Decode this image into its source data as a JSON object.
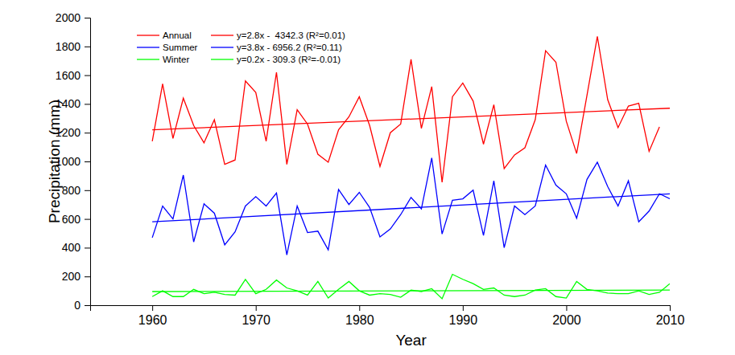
{
  "chart_data": {
    "type": "line",
    "x_label": "Year",
    "y_label": "Precipitation (mm)",
    "x": [
      1960,
      1961,
      1962,
      1963,
      1964,
      1965,
      1966,
      1967,
      1968,
      1969,
      1970,
      1971,
      1972,
      1973,
      1974,
      1975,
      1976,
      1977,
      1978,
      1979,
      1980,
      1981,
      1982,
      1983,
      1984,
      1985,
      1986,
      1987,
      1988,
      1989,
      1990,
      1991,
      1992,
      1993,
      1994,
      1995,
      1996,
      1997,
      1998,
      1999,
      2000,
      2001,
      2002,
      2003,
      2004,
      2005,
      2006,
      2007,
      2008,
      2009,
      2010
    ],
    "xlim": [
      1954,
      2010
    ],
    "xticks": [
      1960,
      1970,
      1980,
      1990,
      2000,
      2010
    ],
    "ylim": [
      0,
      2000
    ],
    "yticks": [
      0,
      200,
      400,
      600,
      800,
      1000,
      1200,
      1400,
      1600,
      1800,
      2000
    ],
    "grid": false,
    "legend": "top-left",
    "series": [
      {
        "name": "Annual",
        "color": "#ff0000",
        "values": [
          1140,
          1540,
          1160,
          1440,
          1250,
          1130,
          1290,
          980,
          1010,
          1560,
          1480,
          1140,
          1620,
          980,
          1360,
          1260,
          1050,
          995,
          1220,
          1310,
          1450,
          1250,
          965,
          1200,
          1260,
          1710,
          1230,
          1520,
          855,
          1450,
          1545,
          1420,
          1120,
          1395,
          950,
          1045,
          1095,
          1290,
          1770,
          1690,
          1280,
          1055,
          1460,
          1870,
          1430,
          1235,
          1385,
          1405,
          1070,
          1240,
          null
        ]
      },
      {
        "name": "Summer",
        "color": "#0000ff",
        "values": [
          470,
          690,
          600,
          905,
          440,
          705,
          640,
          420,
          510,
          690,
          755,
          690,
          780,
          350,
          690,
          505,
          515,
          385,
          805,
          700,
          785,
          680,
          475,
          530,
          630,
          750,
          670,
          1025,
          495,
          730,
          740,
          800,
          485,
          865,
          400,
          690,
          630,
          690,
          975,
          835,
          775,
          605,
          875,
          995,
          825,
          690,
          865,
          580,
          655,
          775,
          740
        ]
      },
      {
        "name": "Winter",
        "color": "#00ff00",
        "values": [
          60,
          100,
          60,
          60,
          110,
          80,
          90,
          75,
          70,
          180,
          80,
          110,
          175,
          120,
          100,
          70,
          165,
          50,
          110,
          165,
          100,
          70,
          80,
          75,
          55,
          105,
          95,
          115,
          45,
          215,
          180,
          150,
          110,
          120,
          70,
          60,
          70,
          105,
          115,
          60,
          50,
          165,
          110,
          100,
          85,
          80,
          80,
          100,
          75,
          90,
          150
        ]
      },
      {
        "name": "y=2.8x -  4342.3 (R²=0.01)",
        "color": "#ff0000",
        "x": [
          1960,
          2010
        ],
        "values": [
          1220,
          1370
        ]
      },
      {
        "name": "y=3.8x - 6956.2 (R²=0.11)",
        "color": "#0000ff",
        "x": [
          1960,
          2010
        ],
        "values": [
          580,
          775
        ]
      },
      {
        "name": "y=0.2x - 309.3 (R²=-0.01)",
        "color": "#00ff00",
        "x": [
          1960,
          2010
        ],
        "values": [
          95,
          105
        ]
      }
    ]
  }
}
